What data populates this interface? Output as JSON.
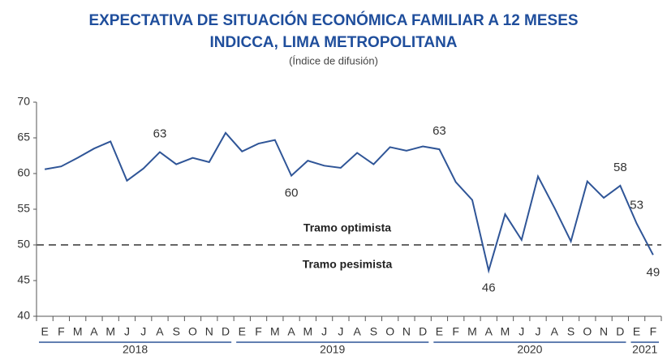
{
  "chart_data": {
    "type": "line",
    "title": "EXPECTATIVA DE SITUACIÓN ECONÓMICA FAMILIAR A 12 MESES",
    "title2": "INDICCA, LIMA METROPOLITANA",
    "subtitle": "(Índice de difusión)",
    "categories": [
      "E",
      "F",
      "M",
      "A",
      "M",
      "J",
      "J",
      "A",
      "S",
      "O",
      "N",
      "D",
      "E",
      "F",
      "M",
      "A",
      "M",
      "J",
      "J",
      "A",
      "S",
      "O",
      "N",
      "D",
      "E",
      "F",
      "M",
      "A",
      "M",
      "J",
      "J",
      "A",
      "S",
      "O",
      "N",
      "D",
      "E",
      "F"
    ],
    "year_groups": [
      {
        "label": "2018",
        "count": 12
      },
      {
        "label": "2019",
        "count": 12
      },
      {
        "label": "2020",
        "count": 12
      },
      {
        "label": "2021",
        "count": 2
      }
    ],
    "series": [
      {
        "name": "INDICCA",
        "color": "#2f5597",
        "values": [
          60.6,
          61.0,
          62.2,
          63.5,
          64.5,
          59.0,
          60.7,
          63.0,
          61.3,
          62.2,
          61.6,
          65.7,
          63.1,
          64.2,
          64.7,
          59.7,
          61.8,
          61.1,
          60.8,
          62.9,
          61.3,
          63.7,
          63.2,
          63.8,
          63.4,
          58.8,
          56.3,
          46.4,
          54.3,
          50.7,
          59.6,
          55.2,
          50.5,
          58.9,
          56.6,
          58.3,
          53.0,
          48.6
        ],
        "value_labels": [
          null,
          null,
          null,
          null,
          null,
          null,
          null,
          "63",
          null,
          null,
          null,
          null,
          null,
          null,
          null,
          "60",
          null,
          null,
          null,
          null,
          null,
          null,
          null,
          null,
          "63",
          null,
          null,
          "46",
          null,
          null,
          null,
          null,
          null,
          null,
          null,
          "58",
          "53",
          "49"
        ]
      }
    ],
    "ylim": [
      40,
      70
    ],
    "yticks": [
      40,
      45,
      50,
      55,
      60,
      65,
      70
    ],
    "reference_line": {
      "value": 50,
      "label_above": "Tramo optimista",
      "label_below": "Tramo pesimista",
      "color": "#666"
    }
  }
}
